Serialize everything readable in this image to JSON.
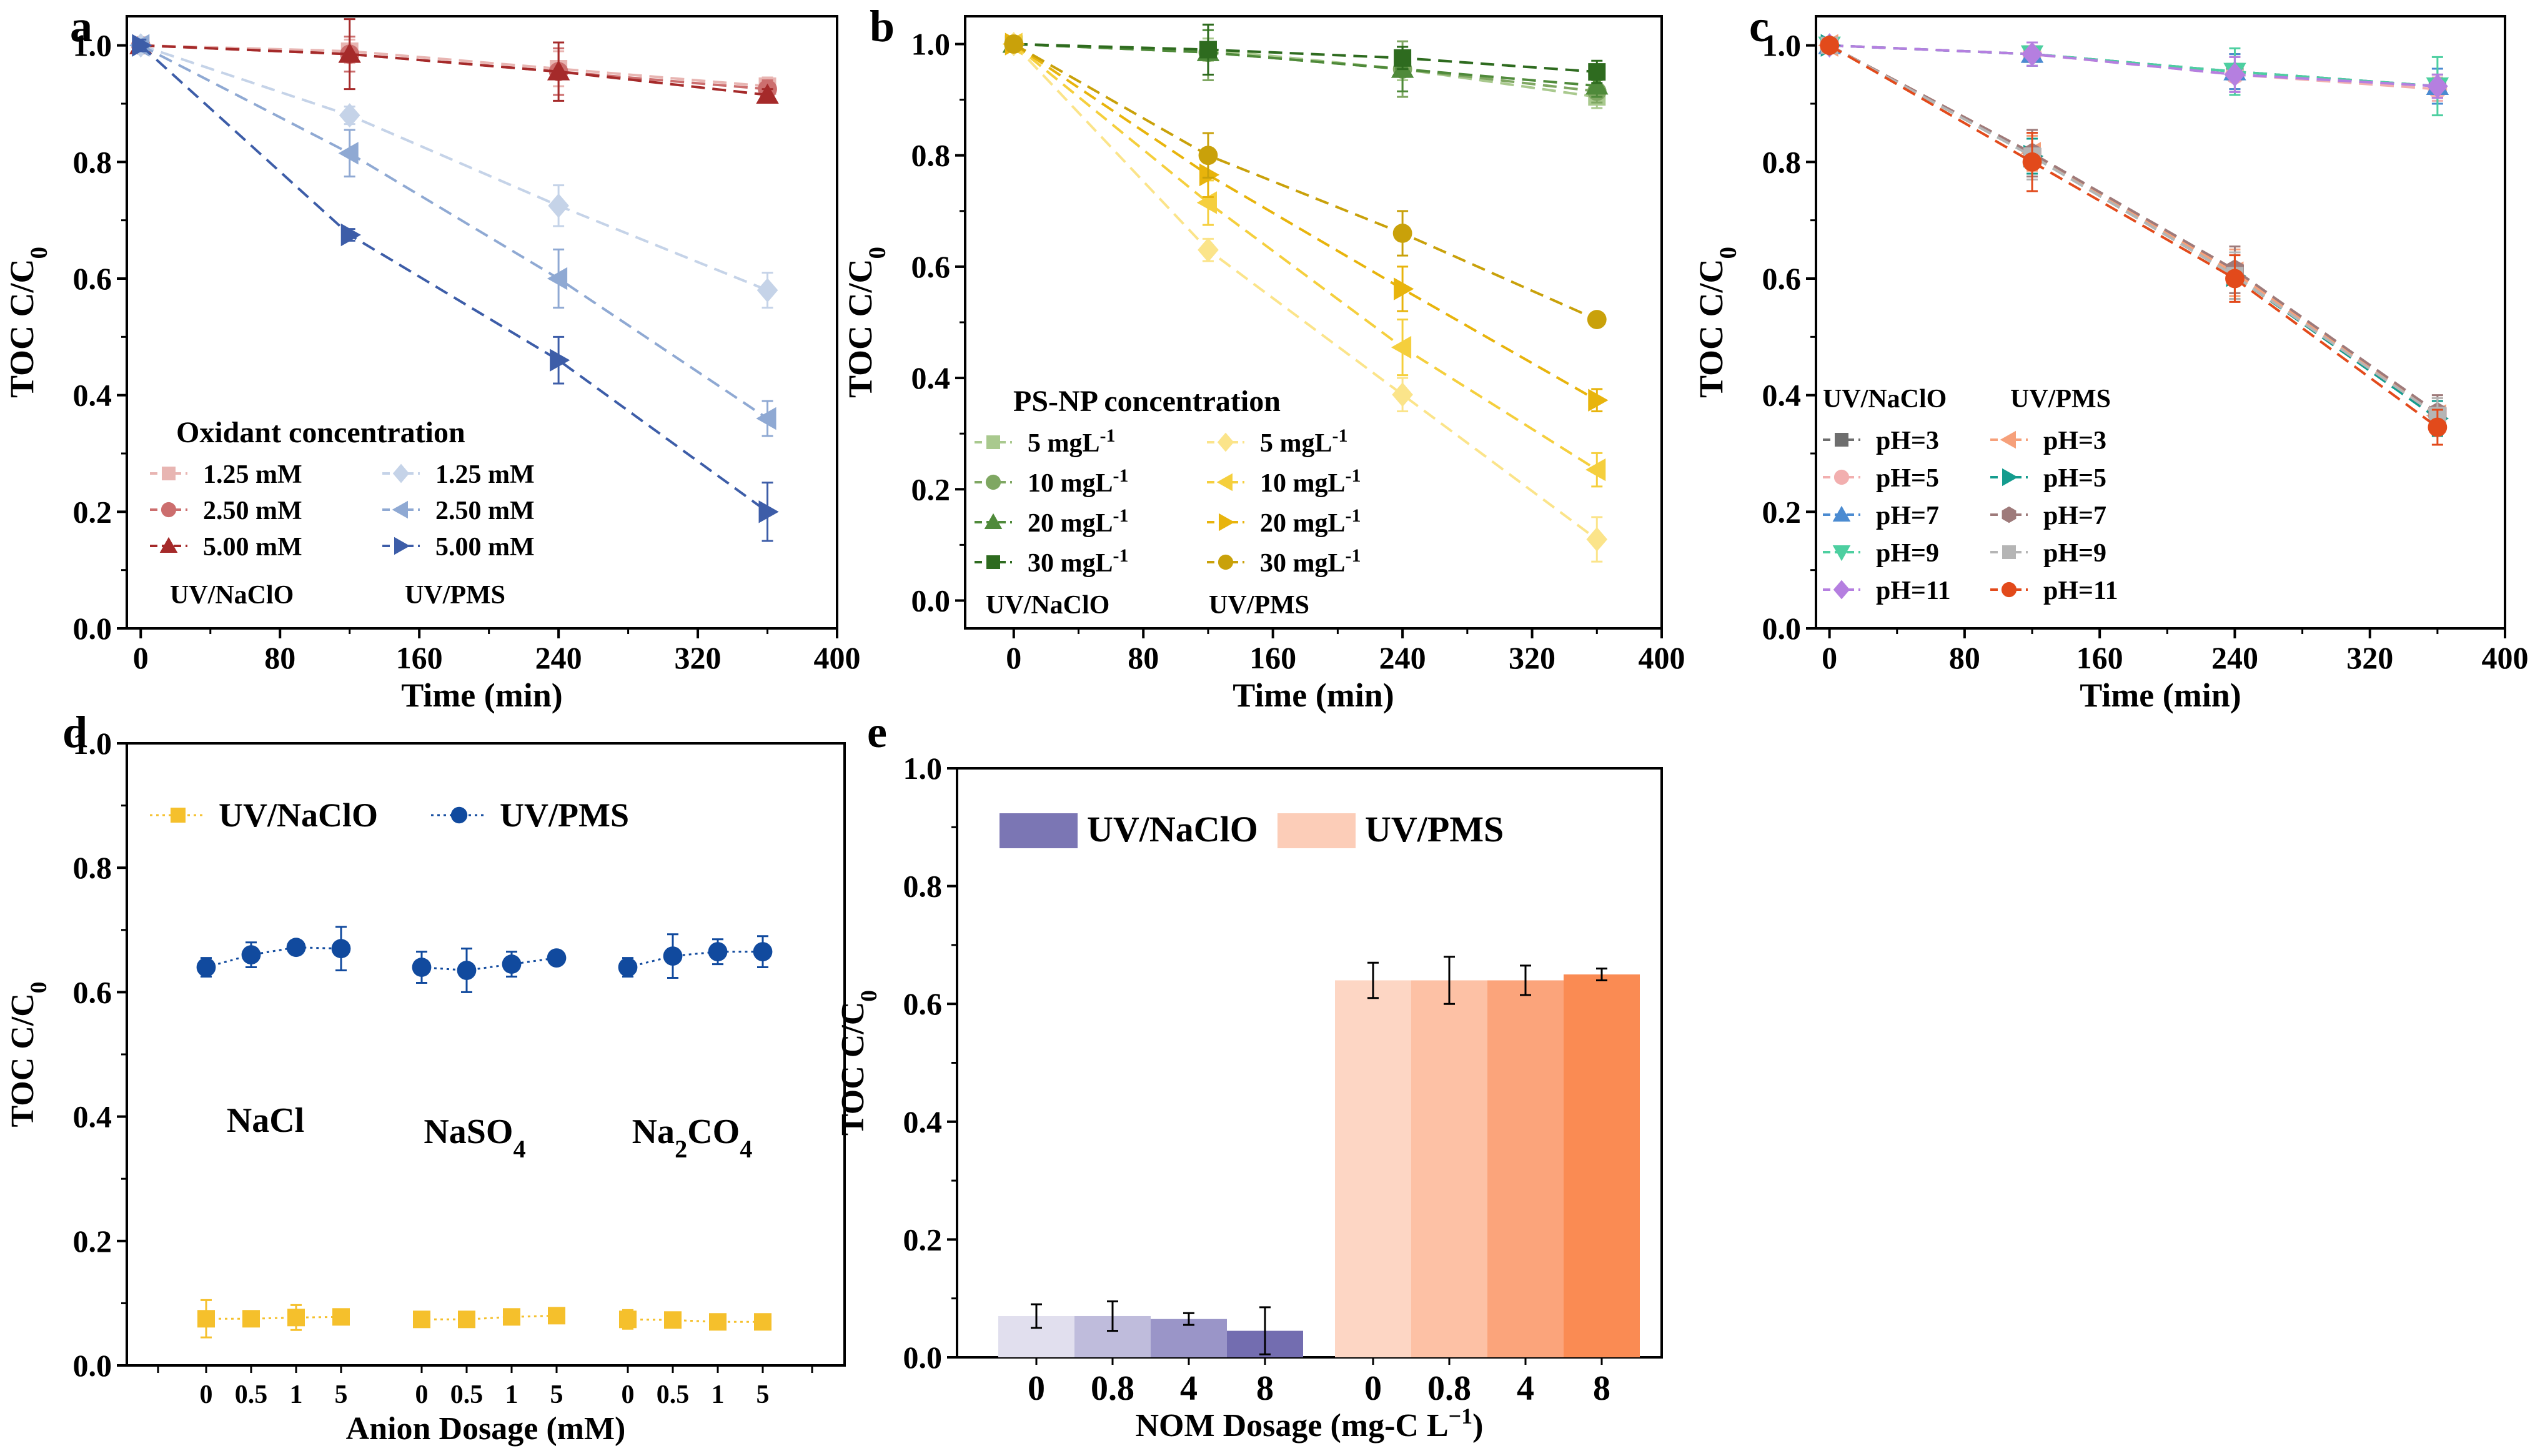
{
  "chart_data": [
    {
      "panel": "a",
      "type": "line",
      "xlabel": "Time (min)",
      "ylabel": "TOC  C/C0",
      "xlim": [
        -8,
        400
      ],
      "ylim": [
        0,
        1.05
      ],
      "xticks": [
        0,
        80,
        160,
        240,
        320,
        400
      ],
      "yticks": [
        0.0,
        0.2,
        0.4,
        0.6,
        0.8,
        1.0
      ],
      "legend_title": "Oxidant concentration",
      "group_labels": [
        "UV/NaClO",
        "UV/PMS"
      ],
      "x": [
        0,
        120,
        240,
        360
      ],
      "series": [
        {
          "name": "1.25 mM",
          "group": "UV/NaClO",
          "color": "#E8B5B2",
          "marker": "square",
          "values": [
            1.0,
            0.99,
            0.96,
            0.93
          ],
          "errors": [
            0.01,
            0.02,
            0.03,
            0.015
          ]
        },
        {
          "name": "2.50 mM",
          "group": "UV/NaClO",
          "color": "#CC6E6E",
          "marker": "circle",
          "values": [
            1.0,
            0.985,
            0.955,
            0.925
          ],
          "errors": [
            0.01,
            0.03,
            0.04,
            0.015
          ]
        },
        {
          "name": "5.00 mM",
          "group": "UV/NaClO",
          "color": "#A52A2A",
          "marker": "triangle-up",
          "values": [
            1.0,
            0.985,
            0.955,
            0.915
          ],
          "errors": [
            0.01,
            0.06,
            0.05,
            0.01
          ]
        },
        {
          "name": "1.25 mM",
          "group": "UV/PMS",
          "color": "#C5D3E8",
          "marker": "diamond",
          "values": [
            1.0,
            0.88,
            0.725,
            0.58
          ],
          "errors": [
            0.01,
            0.015,
            0.035,
            0.03
          ]
        },
        {
          "name": "2.50 mM",
          "group": "UV/PMS",
          "color": "#8FA9D3",
          "marker": "triangle-left",
          "values": [
            1.0,
            0.815,
            0.6,
            0.36
          ],
          "errors": [
            0.01,
            0.04,
            0.05,
            0.03
          ]
        },
        {
          "name": "5.00 mM",
          "group": "UV/PMS",
          "color": "#3D5DA8",
          "marker": "triangle-right",
          "values": [
            1.0,
            0.675,
            0.46,
            0.2
          ],
          "errors": [
            0.01,
            0.01,
            0.04,
            0.05
          ]
        }
      ]
    },
    {
      "panel": "b",
      "type": "line",
      "xlabel": "Time (min)",
      "ylabel": "TOC  C/C0",
      "xlim": [
        -30,
        400
      ],
      "ylim": [
        -0.05,
        1.05
      ],
      "xticks": [
        0,
        80,
        160,
        240,
        320,
        400
      ],
      "yticks": [
        0.0,
        0.2,
        0.4,
        0.6,
        0.8,
        1.0
      ],
      "legend_title": "PS-NP concentration",
      "group_labels": [
        "UV/NaClO",
        "UV/PMS"
      ],
      "x": [
        0,
        120,
        240,
        360
      ],
      "series": [
        {
          "name": "5  mgL",
          "sup": "-1",
          "group": "UV/NaClO",
          "color": "#A9C98E",
          "marker": "square",
          "values": [
            1.0,
            0.99,
            0.955,
            0.905
          ],
          "errors": [
            0.01,
            0.02,
            0.02,
            0.02
          ]
        },
        {
          "name": "10 mgL",
          "sup": "-1",
          "group": "UV/NaClO",
          "color": "#7FA762",
          "marker": "circle",
          "values": [
            1.0,
            0.985,
            0.955,
            0.915
          ],
          "errors": [
            0.01,
            0.05,
            0.05,
            0.02
          ]
        },
        {
          "name": "20 mgL",
          "sup": "-1",
          "group": "UV/NaClO",
          "color": "#4F8A3A",
          "marker": "triangle-up",
          "values": [
            1.0,
            0.985,
            0.955,
            0.925
          ],
          "errors": [
            0.01,
            0.04,
            0.04,
            0.02
          ]
        },
        {
          "name": "30 mgL",
          "sup": "-1",
          "group": "UV/NaClO",
          "color": "#2E6B1F",
          "marker": "square",
          "values": [
            1.0,
            0.99,
            0.975,
            0.95
          ],
          "errors": [
            0.01,
            0.045,
            0.02,
            0.02
          ]
        },
        {
          "name": "5  mgL",
          "sup": "-1",
          "group": "UV/PMS",
          "color": "#FBE48A",
          "marker": "diamond",
          "values": [
            1.0,
            0.63,
            0.37,
            0.11
          ],
          "errors": [
            0.01,
            0.02,
            0.03,
            0.04
          ]
        },
        {
          "name": "10 mgL",
          "sup": "-1",
          "group": "UV/PMS",
          "color": "#F5CF3D",
          "marker": "triangle-left",
          "values": [
            1.0,
            0.715,
            0.455,
            0.235
          ],
          "errors": [
            0.01,
            0.04,
            0.05,
            0.03
          ]
        },
        {
          "name": "20 mgL",
          "sup": "-1",
          "group": "UV/PMS",
          "color": "#E8B40C",
          "marker": "triangle-right",
          "values": [
            1.0,
            0.765,
            0.56,
            0.36
          ],
          "errors": [
            0.01,
            0.04,
            0.04,
            0.02
          ]
        },
        {
          "name": "30 mgL",
          "sup": "-1",
          "group": "UV/PMS",
          "color": "#C9A10A",
          "marker": "circle",
          "values": [
            1.0,
            0.8,
            0.66,
            0.505
          ],
          "errors": [
            0.01,
            0.04,
            0.04,
            0.01
          ]
        }
      ]
    },
    {
      "panel": "c",
      "type": "line",
      "xlabel": "Time (min)",
      "ylabel": "TOC  C/C0",
      "xlim": [
        -8,
        400
      ],
      "ylim": [
        0,
        1.05
      ],
      "xticks": [
        0,
        80,
        160,
        240,
        320,
        400
      ],
      "yticks": [
        0.0,
        0.2,
        0.4,
        0.6,
        0.8,
        1.0
      ],
      "group_labels": [
        "UV/NaClO",
        "UV/PMS"
      ],
      "x": [
        0,
        120,
        240,
        360
      ],
      "series": [
        {
          "name": "pH=3",
          "group": "UV/NaClO",
          "color": "#6E6E6E",
          "marker": "square",
          "values": [
            1.0,
            0.985,
            0.955,
            0.93
          ],
          "errors": [
            0.01,
            0.02,
            0.03,
            0.02
          ]
        },
        {
          "name": "pH=5",
          "group": "UV/NaClO",
          "color": "#F2AFAF",
          "marker": "circle",
          "values": [
            1.0,
            0.985,
            0.95,
            0.925
          ],
          "errors": [
            0.01,
            0.02,
            0.03,
            0.02
          ]
        },
        {
          "name": "pH=7",
          "group": "UV/NaClO",
          "color": "#4B8BD1",
          "marker": "triangle-up",
          "values": [
            1.0,
            0.985,
            0.955,
            0.93
          ],
          "errors": [
            0.01,
            0.02,
            0.03,
            0.03
          ]
        },
        {
          "name": "pH=9",
          "group": "UV/NaClO",
          "color": "#4DCFA0",
          "marker": "triangle-down",
          "values": [
            1.0,
            0.985,
            0.955,
            0.93
          ],
          "errors": [
            0.01,
            0.02,
            0.04,
            0.05
          ]
        },
        {
          "name": "pH=11",
          "group": "UV/NaClO",
          "color": "#B57FE0",
          "marker": "diamond",
          "values": [
            1.0,
            0.985,
            0.95,
            0.93
          ],
          "errors": [
            0.01,
            0.02,
            0.03,
            0.02
          ]
        },
        {
          "name": "pH=3",
          "group": "UV/PMS",
          "color": "#F6A07A",
          "marker": "triangle-left",
          "values": [
            1.0,
            0.815,
            0.61,
            0.365
          ],
          "errors": [
            0.01,
            0.03,
            0.04,
            0.03
          ]
        },
        {
          "name": "pH=5",
          "group": "UV/PMS",
          "color": "#149C8E",
          "marker": "triangle-right",
          "values": [
            1.0,
            0.81,
            0.605,
            0.36
          ],
          "errors": [
            0.01,
            0.03,
            0.04,
            0.03
          ]
        },
        {
          "name": "pH=7",
          "group": "UV/PMS",
          "color": "#9E7A7A",
          "marker": "hexagon",
          "values": [
            1.0,
            0.815,
            0.615,
            0.37
          ],
          "errors": [
            0.01,
            0.04,
            0.04,
            0.03
          ]
        },
        {
          "name": "pH=9",
          "group": "UV/PMS",
          "color": "#B5B5B5",
          "marker": "square",
          "values": [
            1.0,
            0.81,
            0.605,
            0.365
          ],
          "errors": [
            0.01,
            0.04,
            0.04,
            0.03
          ]
        },
        {
          "name": "pH=11",
          "group": "UV/PMS",
          "color": "#E24A1B",
          "marker": "circle",
          "values": [
            1.0,
            0.8,
            0.6,
            0.345
          ],
          "errors": [
            0.01,
            0.05,
            0.04,
            0.03
          ]
        }
      ]
    },
    {
      "panel": "d",
      "type": "scatter",
      "xlabel": "Anion Dosage (mM)",
      "ylabel": "TOC C/C0",
      "ylim": [
        0,
        1.0
      ],
      "yticks": [
        0.0,
        0.2,
        0.4,
        0.6,
        0.8,
        1.0
      ],
      "groups": [
        {
          "label": "NaCl",
          "sub": "",
          "dosages": [
            "0",
            "0.5",
            "1",
            "5"
          ]
        },
        {
          "label": "NaSO4",
          "sub": "4",
          "dosages": [
            "0",
            "0.5",
            "1",
            "5"
          ]
        },
        {
          "label": "Na2CO4",
          "sub": "2,4",
          "dosages": [
            "0",
            "0.5",
            "1",
            "5"
          ]
        }
      ],
      "series": [
        {
          "name": "UV/NaClO",
          "color": "#F5C02C",
          "marker": "square",
          "values": [
            [
              0.075,
              0.075,
              0.077,
              0.078
            ],
            [
              0.074,
              0.074,
              0.078,
              0.08
            ],
            [
              0.074,
              0.073,
              0.07,
              0.07
            ]
          ],
          "errors": [
            [
              0.03,
              0.01,
              0.02,
              0.01
            ],
            [
              0.01,
              0.01,
              0.01,
              0.01
            ],
            [
              0.015,
              0.01,
              0.01,
              0.01
            ]
          ]
        },
        {
          "name": "UV/PMS",
          "color": "#114A9E",
          "marker": "circle",
          "values": [
            [
              0.64,
              0.66,
              0.672,
              0.67
            ],
            [
              0.64,
              0.635,
              0.645,
              0.655
            ],
            [
              0.64,
              0.658,
              0.665,
              0.665
            ]
          ],
          "errors": [
            [
              0.015,
              0.02,
              0.005,
              0.035
            ],
            [
              0.025,
              0.035,
              0.02,
              0.005
            ],
            [
              0.015,
              0.035,
              0.02,
              0.025
            ]
          ]
        }
      ]
    },
    {
      "panel": "e",
      "type": "bar",
      "xlabel": "NOM Dosage (mg-C L",
      "xlabel_sup": "−1",
      "xlabel_tail": ")",
      "ylabel": "TOC C/C0",
      "ylim": [
        0,
        1.0
      ],
      "yticks": [
        0.0,
        0.2,
        0.4,
        0.6,
        0.8,
        1.0
      ],
      "categories": [
        "0",
        "0.8",
        "4",
        "8"
      ],
      "series": [
        {
          "name": "UV/NaClO",
          "colors": [
            "#E1DFEE",
            "#BFBCDC",
            "#9A95C8",
            "#736DB0"
          ],
          "legend_color": "#7B76B4",
          "values": [
            0.07,
            0.07,
            0.065,
            0.045
          ],
          "errors": [
            0.02,
            0.025,
            0.01,
            0.04
          ]
        },
        {
          "name": "UV/PMS",
          "colors": [
            "#FDD6C4",
            "#FDC1A5",
            "#FBA47B",
            "#FA8B53"
          ],
          "legend_color": "#FCCDB8",
          "values": [
            0.64,
            0.64,
            0.64,
            0.65
          ],
          "errors": [
            0.03,
            0.04,
            0.025,
            0.01
          ]
        }
      ]
    }
  ]
}
